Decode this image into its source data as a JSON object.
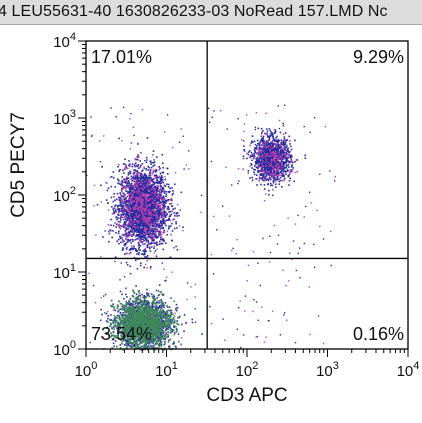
{
  "window": {
    "title": "4 LEU55631-40 1630826233-03 NoRead 157.LMD   Nc"
  },
  "colors": {
    "background": "#ffffff",
    "title_bar": "#dcdcdc",
    "population_main": "#2c2ca0",
    "population_dense": "#3f8a5a",
    "population_edge": "#c040b0",
    "gate_lines": "#000000"
  },
  "chart_data": {
    "type": "scatter",
    "subtype": "flow-cytometry-dot-plot",
    "xlabel": "CD3 APC",
    "ylabel": "CD5 PECY7",
    "x_scale": "log",
    "y_scale": "log",
    "xlim": [
      1,
      10000
    ],
    "ylim": [
      1,
      10000
    ],
    "x_ticks": [
      {
        "value": 1,
        "base": "10",
        "exp": "0"
      },
      {
        "value": 10,
        "base": "10",
        "exp": "1"
      },
      {
        "value": 100,
        "base": "10",
        "exp": "2"
      },
      {
        "value": 1000,
        "base": "10",
        "exp": "3"
      },
      {
        "value": 10000,
        "base": "10",
        "exp": "4"
      }
    ],
    "y_ticks": [
      {
        "value": 1,
        "base": "10",
        "exp": "0"
      },
      {
        "value": 10,
        "base": "10",
        "exp": "1"
      },
      {
        "value": 100,
        "base": "10",
        "exp": "2"
      },
      {
        "value": 1000,
        "base": "10",
        "exp": "3"
      },
      {
        "value": 10000,
        "base": "10",
        "exp": "4"
      }
    ],
    "gates": {
      "x": 32,
      "y": 15
    },
    "quadrants": [
      {
        "id": "upper-left",
        "label": "17.01%"
      },
      {
        "id": "upper-right",
        "label": "9.29%"
      },
      {
        "id": "lower-left",
        "label": "73.54%"
      },
      {
        "id": "lower-right",
        "label": "0.16%"
      }
    ],
    "populations": [
      {
        "name": "cd5-bright-cd3-negative",
        "x_center": 5,
        "y_center": 70,
        "x_spread": 2.0,
        "y_spread": 3.2
      },
      {
        "name": "double-negative",
        "x_center": 5,
        "y_center": 2.2,
        "x_spread": 2.2,
        "y_spread": 2.0
      },
      {
        "name": "cd3-cd5-double-positive",
        "x_center": 200,
        "y_center": 300,
        "x_spread": 1.7,
        "y_spread": 1.9
      }
    ]
  }
}
